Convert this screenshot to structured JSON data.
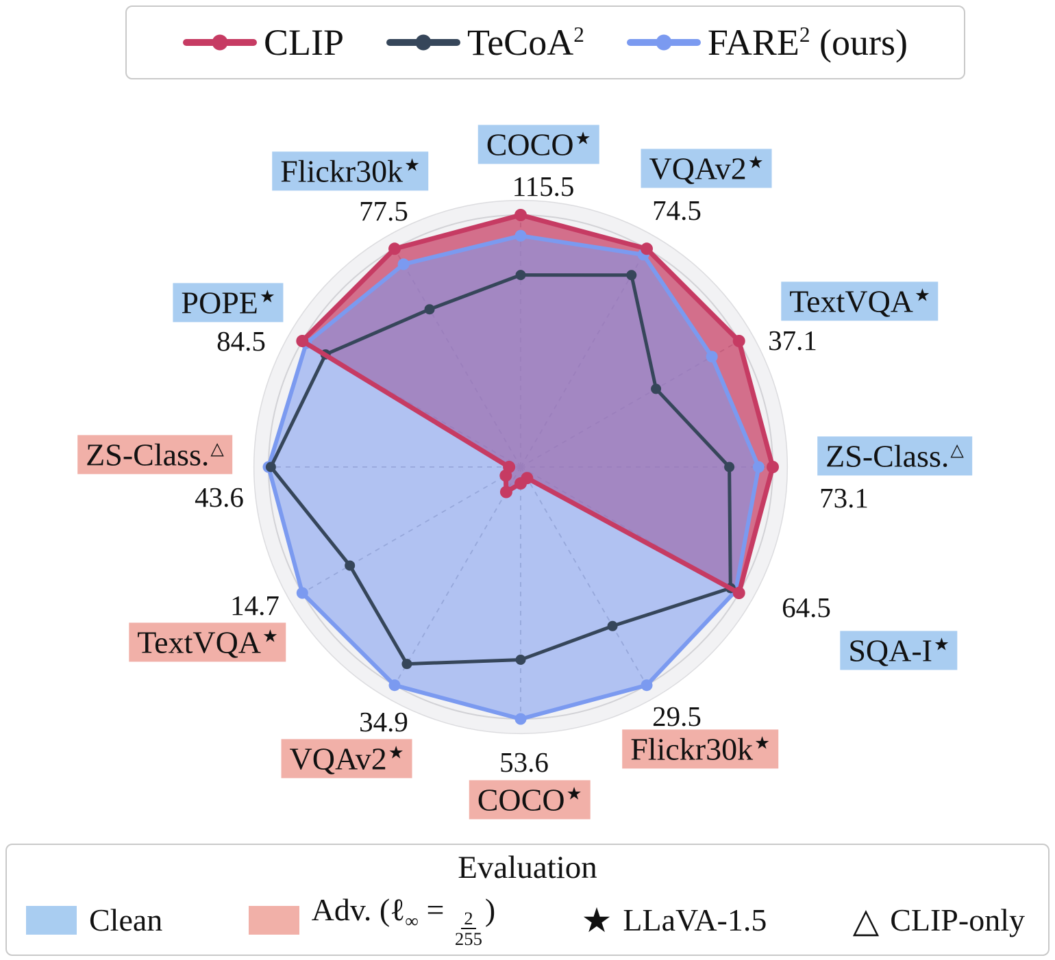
{
  "legend_top": {
    "items": [
      {
        "label": "CLIP",
        "sup": "",
        "suffix": ""
      },
      {
        "label": "TeCoA",
        "sup": "2",
        "suffix": ""
      },
      {
        "label": "FARE",
        "sup": "2",
        "suffix": " (ours)"
      }
    ]
  },
  "chart_data": {
    "type": "radar",
    "title": "",
    "axes": [
      {
        "label": "COCO",
        "marker": "★",
        "eval": "clean",
        "max": 115.5
      },
      {
        "label": "VQAv2",
        "marker": "★",
        "eval": "clean",
        "max": 74.5
      },
      {
        "label": "TextVQA",
        "marker": "★",
        "eval": "clean",
        "max": 37.1
      },
      {
        "label": "ZS-Class.",
        "marker": "△",
        "eval": "clean",
        "max": 73.1
      },
      {
        "label": "SQA-I",
        "marker": "★",
        "eval": "clean",
        "max": 64.5
      },
      {
        "label": "Flickr30k",
        "marker": "★",
        "eval": "adv",
        "max": 29.5
      },
      {
        "label": "COCO",
        "marker": "★",
        "eval": "adv",
        "max": 53.6
      },
      {
        "label": "VQAv2",
        "marker": "★",
        "eval": "adv",
        "max": 34.9
      },
      {
        "label": "TextVQA",
        "marker": "★",
        "eval": "adv",
        "max": 14.7
      },
      {
        "label": "ZS-Class.",
        "marker": "△",
        "eval": "adv",
        "max": 43.6
      },
      {
        "label": "POPE",
        "marker": "★",
        "eval": "clean",
        "max": 84.5
      },
      {
        "label": "Flickr30k",
        "marker": "★",
        "eval": "clean",
        "max": 77.5
      }
    ],
    "series": [
      {
        "name": "CLIP",
        "color": "#c63b63",
        "fill_opacity": 0.72,
        "line_width": 7,
        "marker_radius": 9,
        "values": [
          115.5,
          74.5,
          37.1,
          73.1,
          64.5,
          1.5,
          3.5,
          4.0,
          1.0,
          2.0,
          84.5,
          77.5
        ]
      },
      {
        "name": "TeCoA2",
        "color": "#36465a",
        "fill_opacity": 0,
        "line_width": 5,
        "marker_radius": 7.5,
        "values": [
          88.0,
          65.5,
          23.0,
          60.5,
          62.0,
          21.5,
          41.0,
          31.5,
          11.5,
          43.2,
          75.5,
          56.0
        ]
      },
      {
        "name": "FARE2",
        "color": "#7b9af0",
        "fill_opacity": 0.55,
        "line_width": 6,
        "marker_radius": 8.5,
        "values": [
          106.0,
          72.5,
          32.5,
          69.0,
          63.5,
          29.5,
          53.6,
          34.9,
          14.7,
          43.6,
          83.0,
          72.0
        ]
      }
    ],
    "style": {
      "clean_bg": "#a9cdf1",
      "adv_bg": "#f1b0a8",
      "disc_fill": "#f2f2f4",
      "ring_color": "#d2d2d6",
      "grid_color": "#b6b6bf"
    }
  },
  "legend_bottom": {
    "title": "Evaluation",
    "clean": {
      "label": "Clean"
    },
    "adv": {
      "prefix": "Adv. (",
      "ell": "ℓ",
      "sub": "∞",
      "eq": " = ",
      "num": "2",
      "den": "255",
      "close": ")"
    },
    "llava": {
      "glyph": "★",
      "label": "LLaVA-1.5"
    },
    "clip_only": {
      "glyph": "△",
      "label": "CLIP-only"
    }
  }
}
